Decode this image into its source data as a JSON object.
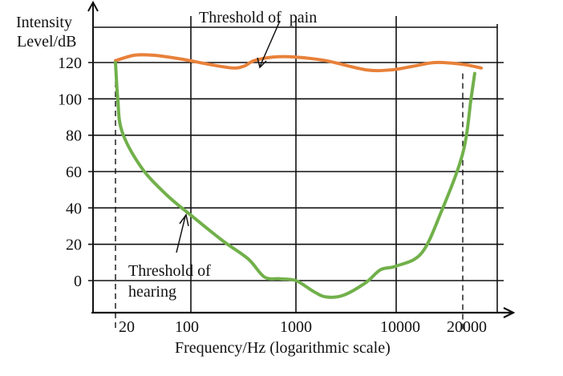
{
  "chart_data": {
    "type": "line",
    "title": "",
    "xlabel": "Frequency/Hz (logarithmic scale)",
    "ylabel_line1": "Intensity",
    "ylabel_line2": "Level/dB",
    "x_scale": "log",
    "x_ticks": [
      {
        "value": 20,
        "label": "20",
        "line": "dashed"
      },
      {
        "value": 100,
        "label": "100",
        "line": "solid"
      },
      {
        "value": 1000,
        "label": "1000",
        "line": "solid"
      },
      {
        "value": 10000,
        "label": "10000",
        "line": "solid"
      },
      {
        "value": 20000,
        "label": "20000",
        "line": "dashed"
      }
    ],
    "y_ticks": [
      {
        "value": 120,
        "label": "120"
      },
      {
        "value": 100,
        "label": "100"
      },
      {
        "value": 80,
        "label": "80"
      },
      {
        "value": 60,
        "label": "60"
      },
      {
        "value": 40,
        "label": "40"
      },
      {
        "value": 20,
        "label": "20"
      },
      {
        "value": 0,
        "label": "0"
      }
    ],
    "ylim": [
      -17,
      140
    ],
    "grid": true,
    "series": [
      {
        "name": "Threshold of pain",
        "color": "#e8813a",
        "points": [
          [
            20,
            121
          ],
          [
            30,
            124
          ],
          [
            45,
            124
          ],
          [
            80,
            122
          ],
          [
            150,
            119
          ],
          [
            250,
            117
          ],
          [
            320,
            118
          ],
          [
            400,
            121
          ],
          [
            600,
            123
          ],
          [
            1000,
            123
          ],
          [
            2000,
            121
          ],
          [
            5000,
            116
          ],
          [
            9000,
            116
          ],
          [
            12000,
            118
          ],
          [
            15000,
            120
          ],
          [
            20000,
            119
          ],
          [
            30000,
            117
          ]
        ]
      },
      {
        "name": "Threshold of hearing",
        "color": "#71b04a",
        "points": [
          [
            20,
            120
          ],
          [
            21,
            100
          ],
          [
            23,
            82
          ],
          [
            35,
            62
          ],
          [
            60,
            47
          ],
          [
            100,
            36
          ],
          [
            200,
            22
          ],
          [
            350,
            12
          ],
          [
            500,
            2
          ],
          [
            700,
            1
          ],
          [
            1000,
            0
          ],
          [
            1500,
            -6
          ],
          [
            2000,
            -9
          ],
          [
            3000,
            -8
          ],
          [
            5000,
            -1
          ],
          [
            7000,
            6
          ],
          [
            10000,
            8
          ],
          [
            13000,
            15
          ],
          [
            16000,
            38
          ],
          [
            20000,
            70
          ],
          [
            24000,
            100
          ],
          [
            26000,
            114
          ]
        ]
      }
    ],
    "annotations": [
      {
        "text": "Threshold of  pain",
        "points_to": "Threshold of pain"
      },
      {
        "text_line1": "Threshold of",
        "text_line2": "hearing",
        "points_to": "Threshold of hearing"
      }
    ]
  }
}
